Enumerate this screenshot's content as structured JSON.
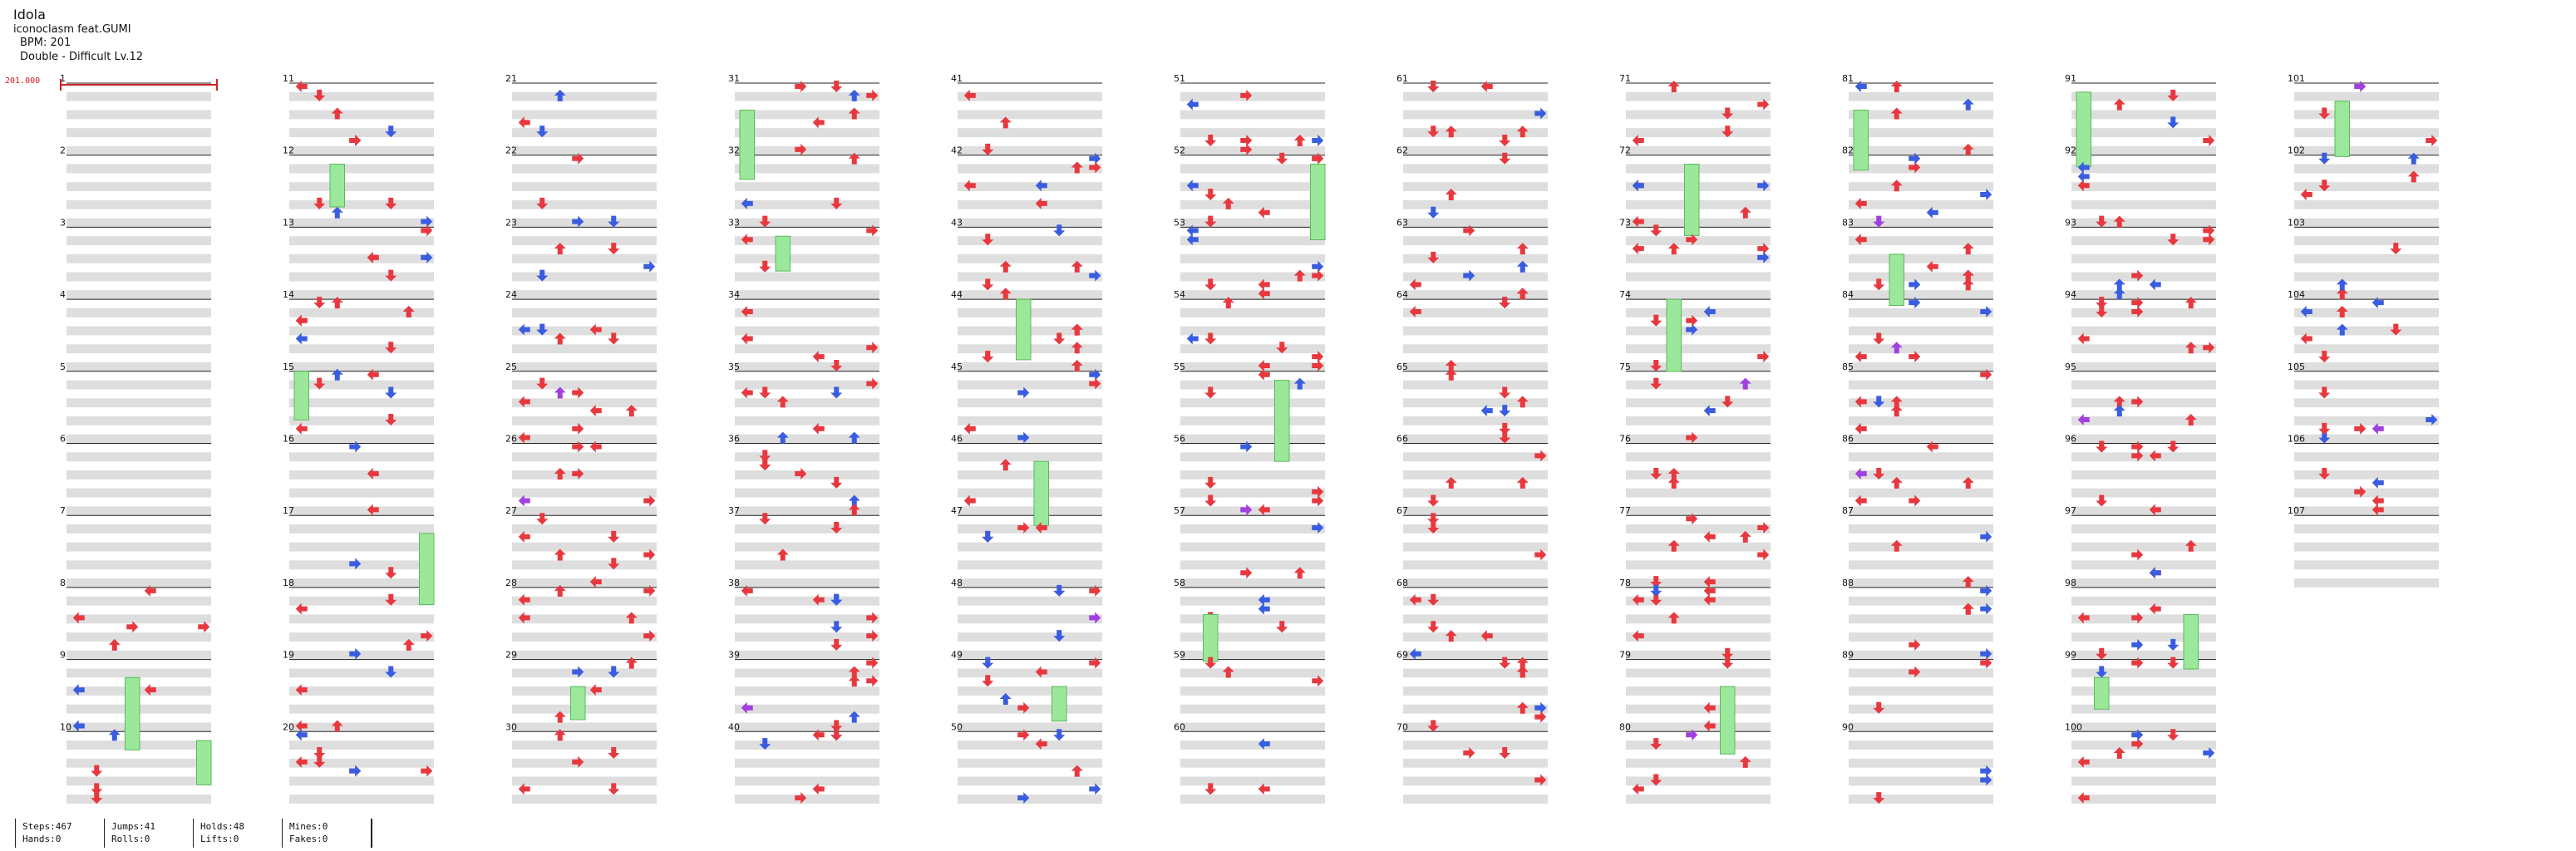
{
  "song": {
    "title": "Idola",
    "artist": "iconoclasm feat.GUMI",
    "bpm_label": "BPM: 201",
    "difficulty": "Double - Difficult Lv.12"
  },
  "bpm_marker": "201.000",
  "measure_labels": [
    "1",
    "2",
    "3",
    "4",
    "5",
    "6",
    "7",
    "8",
    "9",
    "10",
    "11",
    "12",
    "13",
    "14",
    "15",
    "16",
    "17",
    "18",
    "19",
    "20",
    "21",
    "22",
    "23",
    "24",
    "25",
    "26",
    "27",
    "28",
    "29",
    "30",
    "31",
    "32",
    "33",
    "34",
    "35",
    "36",
    "37",
    "38",
    "39",
    "40",
    "41",
    "42",
    "43",
    "44",
    "45",
    "46",
    "47",
    "48",
    "49",
    "50",
    "51",
    "52",
    "53",
    "54",
    "55",
    "56",
    "57",
    "58",
    "59",
    "60",
    "61",
    "62",
    "63",
    "64",
    "65",
    "66",
    "67",
    "68",
    "69",
    "70",
    "71",
    "72",
    "73",
    "74",
    "75",
    "76",
    "77",
    "78",
    "79",
    "80",
    "81",
    "82",
    "83",
    "84",
    "85",
    "86",
    "87",
    "88",
    "89",
    "90",
    "91",
    "92",
    "93",
    "94",
    "95",
    "96",
    "97",
    "98",
    "99",
    "100",
    "101",
    "102",
    "103",
    "104",
    "105",
    "106",
    "107"
  ],
  "colors": {
    "note_red": "#e8383f",
    "note_blue": "#3a5de0",
    "note_purple": "#a040e0",
    "hold": "#9be89b",
    "band": "#dedede",
    "bpm": "#d02020"
  },
  "stats": [
    {
      "top": "Steps:467",
      "bottom": "Hands:0"
    },
    {
      "top": "Jumps:41",
      "bottom": "Rolls:0"
    },
    {
      "top": "Holds:48",
      "bottom": "Lifts:0"
    },
    {
      "top": "Mines:0",
      "bottom": "Fakes:0"
    }
  ]
}
